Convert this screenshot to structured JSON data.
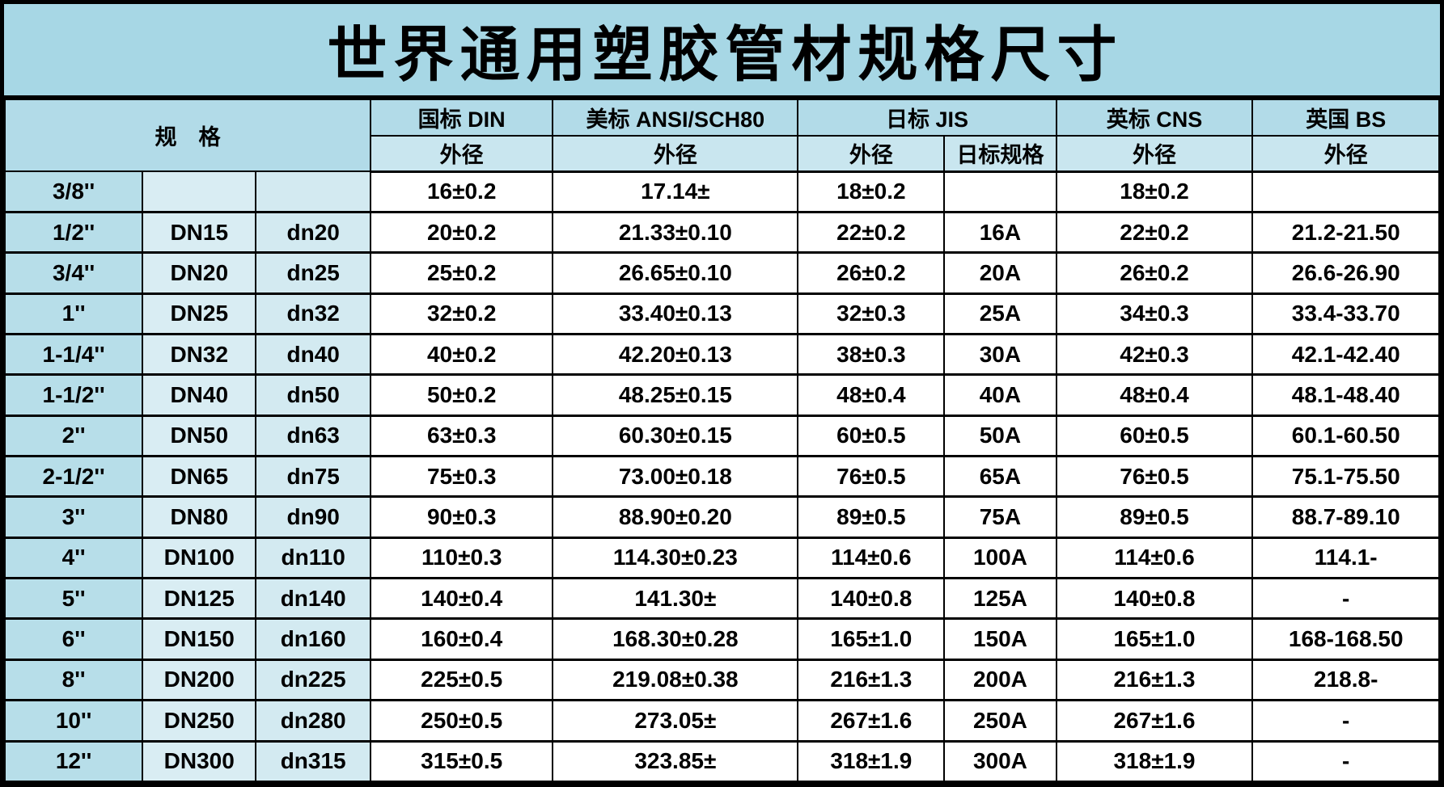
{
  "title": "世界通用塑胶管材规格尺寸",
  "colors": {
    "title_bg": "#a7d7e5",
    "group_header_bg": "#b2dbe8",
    "sub_header_bg": "#c9e6ef",
    "spec_header_bg": "#c1e2ec",
    "inch_col_bg": "#b7dee9",
    "dn_col_bg": "#d9edf3",
    "dn_mm_col_bg": "#d3eaf1",
    "data_cell_bg": "#ffffff",
    "border": "#000000"
  },
  "table": {
    "spec_header": "规　格",
    "group_headers": [
      {
        "label": "国标 DIN"
      },
      {
        "label": "美标 ANSI/SCH80"
      },
      {
        "label": "日标 JIS"
      },
      {
        "label": "英标 CNS"
      },
      {
        "label": "英国 BS"
      }
    ],
    "sub_headers": [
      "外径",
      "外径",
      "外径",
      "日标规格",
      "外径",
      "外径"
    ],
    "column_keys": [
      "size-inch",
      "size-dn",
      "size-dn-mm",
      "din-od",
      "ansi-od",
      "jis-od",
      "jis-spec",
      "cns-od",
      "bs-od"
    ],
    "rows": [
      [
        "3/8''",
        "",
        "",
        "16±0.2",
        "17.14±",
        "18±0.2",
        "",
        "18±0.2",
        ""
      ],
      [
        "1/2''",
        "DN15",
        "dn20",
        "20±0.2",
        "21.33±0.10",
        "22±0.2",
        "16A",
        "22±0.2",
        "21.2-21.50"
      ],
      [
        "3/4''",
        "DN20",
        "dn25",
        "25±0.2",
        "26.65±0.10",
        "26±0.2",
        "20A",
        "26±0.2",
        "26.6-26.90"
      ],
      [
        "1''",
        "DN25",
        "dn32",
        "32±0.2",
        "33.40±0.13",
        "32±0.3",
        "25A",
        "34±0.3",
        "33.4-33.70"
      ],
      [
        "1-1/4''",
        "DN32",
        "dn40",
        "40±0.2",
        "42.20±0.13",
        "38±0.3",
        "30A",
        "42±0.3",
        "42.1-42.40"
      ],
      [
        "1-1/2''",
        "DN40",
        "dn50",
        "50±0.2",
        "48.25±0.15",
        "48±0.4",
        "40A",
        "48±0.4",
        "48.1-48.40"
      ],
      [
        "2''",
        "DN50",
        "dn63",
        "63±0.3",
        "60.30±0.15",
        "60±0.5",
        "50A",
        "60±0.5",
        "60.1-60.50"
      ],
      [
        "2-1/2''",
        "DN65",
        "dn75",
        "75±0.3",
        "73.00±0.18",
        "76±0.5",
        "65A",
        "76±0.5",
        "75.1-75.50"
      ],
      [
        "3''",
        "DN80",
        "dn90",
        "90±0.3",
        "88.90±0.20",
        "89±0.5",
        "75A",
        "89±0.5",
        "88.7-89.10"
      ],
      [
        "4''",
        "DN100",
        "dn110",
        "110±0.3",
        "114.30±0.23",
        "114±0.6",
        "100A",
        "114±0.6",
        "114.1-"
      ],
      [
        "5''",
        "DN125",
        "dn140",
        "140±0.4",
        "141.30±",
        "140±0.8",
        "125A",
        "140±0.8",
        "-"
      ],
      [
        "6''",
        "DN150",
        "dn160",
        "160±0.4",
        "168.30±0.28",
        "165±1.0",
        "150A",
        "165±1.0",
        "168-168.50"
      ],
      [
        "8''",
        "DN200",
        "dn225",
        "225±0.5",
        "219.08±0.38",
        "216±1.3",
        "200A",
        "216±1.3",
        "218.8-"
      ],
      [
        "10''",
        "DN250",
        "dn280",
        "250±0.5",
        "273.05±",
        "267±1.6",
        "250A",
        "267±1.6",
        "-"
      ],
      [
        "12''",
        "DN300",
        "dn315",
        "315±0.5",
        "323.85±",
        "318±1.9",
        "300A",
        "318±1.9",
        "-"
      ]
    ]
  }
}
